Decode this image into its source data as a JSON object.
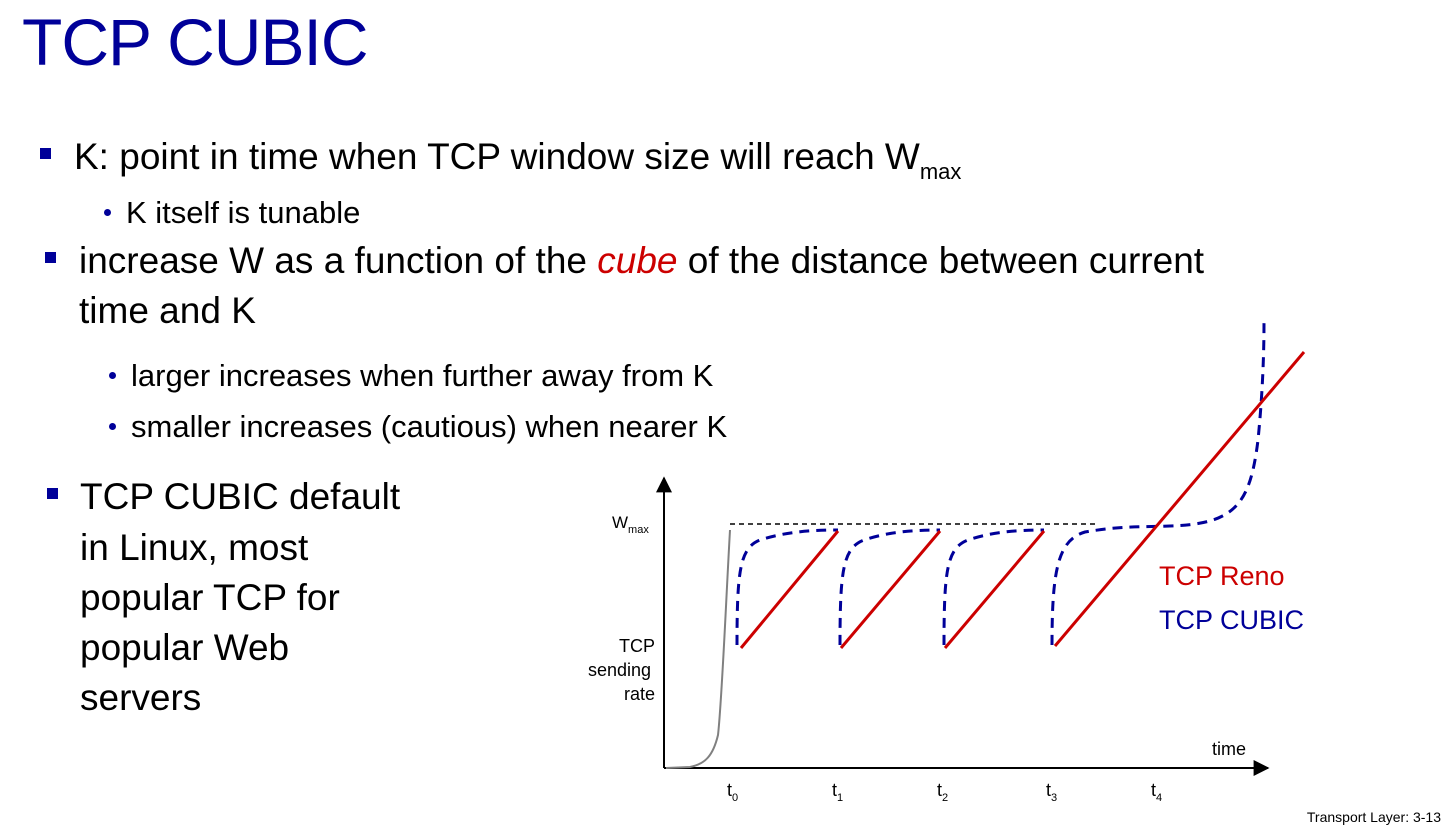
{
  "slide": {
    "title": "TCP CUBIC",
    "bullet1": {
      "text": "K: point in time when TCP window size will reach W",
      "subscript": "max"
    },
    "bullet1_sub1": "K itself is tunable",
    "bullet2": {
      "line1_pre": "increase W as a function of the ",
      "line1_em": "cube",
      "line1_post": " of the distance between current",
      "line2": "time  and K"
    },
    "bullet2_sub1": "larger increases when further away from K",
    "bullet2_sub2": "smaller increases (cautious) when nearer K",
    "bullet3_lines": [
      "TCP CUBIC default",
      "in Linux, most",
      "popular TCP for",
      "popular Web",
      "servers"
    ],
    "footer": "Transport Layer: 3-13"
  },
  "colors": {
    "title": "#000099",
    "reno": "#cc0000",
    "cubic": "#000099",
    "slow_start": "#808080"
  },
  "diagram": {
    "wmax_label": "W",
    "wmax_sub": "max",
    "ylabel_lines": [
      "TCP",
      "sending",
      "rate"
    ],
    "xlabel": "time",
    "ticks": [
      {
        "main": "t",
        "sub": "0"
      },
      {
        "main": "t",
        "sub": "1"
      },
      {
        "main": "t",
        "sub": "2"
      },
      {
        "main": "t",
        "sub": "3"
      },
      {
        "main": "t",
        "sub": "4"
      }
    ],
    "legend": [
      {
        "label": "TCP Reno",
        "color": "#cc0000"
      },
      {
        "label": "TCP CUBIC",
        "color": "#000099"
      }
    ]
  }
}
